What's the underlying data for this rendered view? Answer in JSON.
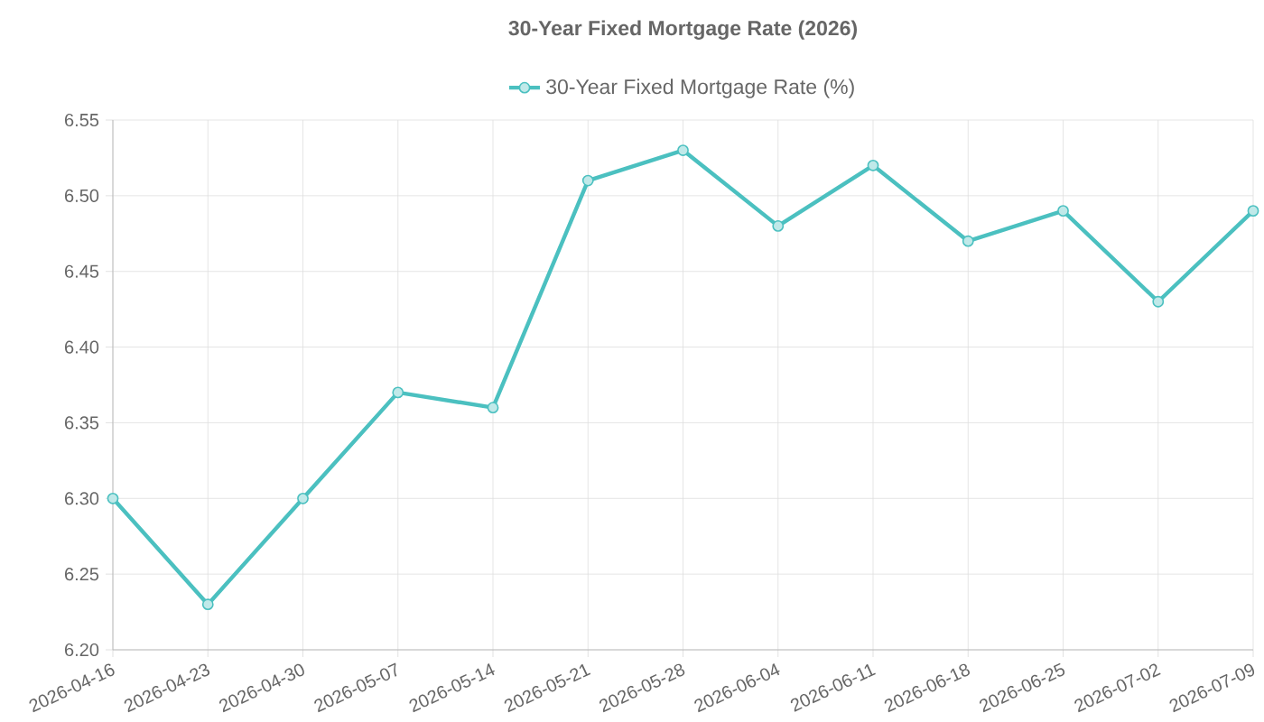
{
  "chart_data": {
    "type": "line",
    "title": "30-Year Fixed Mortgage Rate (2026)",
    "categories": [
      "2026-04-16",
      "2026-04-23",
      "2026-04-30",
      "2026-05-07",
      "2026-05-14",
      "2026-05-21",
      "2026-05-28",
      "2026-06-04",
      "2026-06-11",
      "2026-06-18",
      "2026-06-25",
      "2026-07-02",
      "2026-07-09"
    ],
    "series": [
      {
        "name": "30-Year Fixed Mortgage Rate (%)",
        "color": "#4bc0c0",
        "values": [
          6.3,
          6.23,
          6.3,
          6.37,
          6.36,
          6.51,
          6.53,
          6.48,
          6.52,
          6.47,
          6.49,
          6.43,
          6.49
        ]
      }
    ],
    "ylim": [
      6.2,
      6.55
    ],
    "yticks": [
      {
        "value": 6.2,
        "label": "6.20"
      },
      {
        "value": 6.25,
        "label": "6.25"
      },
      {
        "value": 6.3,
        "label": "6.30"
      },
      {
        "value": 6.35,
        "label": "6.35"
      },
      {
        "value": 6.4,
        "label": "6.40"
      },
      {
        "value": 6.45,
        "label": "6.45"
      },
      {
        "value": 6.5,
        "label": "6.50"
      },
      {
        "value": 6.55,
        "label": "6.55"
      }
    ],
    "grid": true,
    "legend": "top",
    "marker": "circle",
    "line_style": "solid"
  }
}
